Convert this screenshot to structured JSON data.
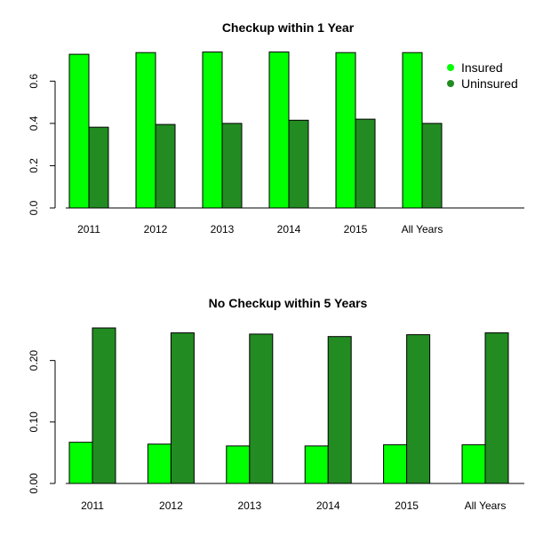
{
  "charts": [
    {
      "type": "bar",
      "title": "Checkup within 1 Year",
      "categories": [
        "2011",
        "2012",
        "2013",
        "2014",
        "2015",
        "All Years"
      ],
      "series": [
        {
          "name": "Insured",
          "color": "#00ff00",
          "values": [
            0.727,
            0.735,
            0.738,
            0.738,
            0.735,
            0.735
          ]
        },
        {
          "name": "Uninsured",
          "color": "#228b22",
          "values": [
            0.382,
            0.395,
            0.4,
            0.415,
            0.42,
            0.4
          ]
        }
      ],
      "ylim": [
        0,
        0.74
      ],
      "y_ticks": [
        0.0,
        0.2,
        0.4,
        0.6
      ],
      "y_tick_labels": [
        "0.0",
        "0.2",
        "0.4",
        "0.6"
      ],
      "legend": {
        "position": "top-right",
        "entries": [
          "Insured",
          "Uninsured"
        ]
      }
    },
    {
      "type": "bar",
      "title": "No Checkup within 5 Years",
      "categories": [
        "2011",
        "2012",
        "2013",
        "2014",
        "2015",
        "All Years"
      ],
      "series": [
        {
          "name": "Insured",
          "color": "#00ff00",
          "values": [
            0.067,
            0.064,
            0.061,
            0.061,
            0.063,
            0.063
          ]
        },
        {
          "name": "Uninsured",
          "color": "#228b22",
          "values": [
            0.253,
            0.245,
            0.243,
            0.239,
            0.242,
            0.245
          ]
        }
      ],
      "ylim": [
        0,
        0.253
      ],
      "y_ticks": [
        0.0,
        0.1,
        0.2
      ],
      "y_tick_labels": [
        "0.00",
        "0.10",
        "0.20"
      ]
    }
  ]
}
